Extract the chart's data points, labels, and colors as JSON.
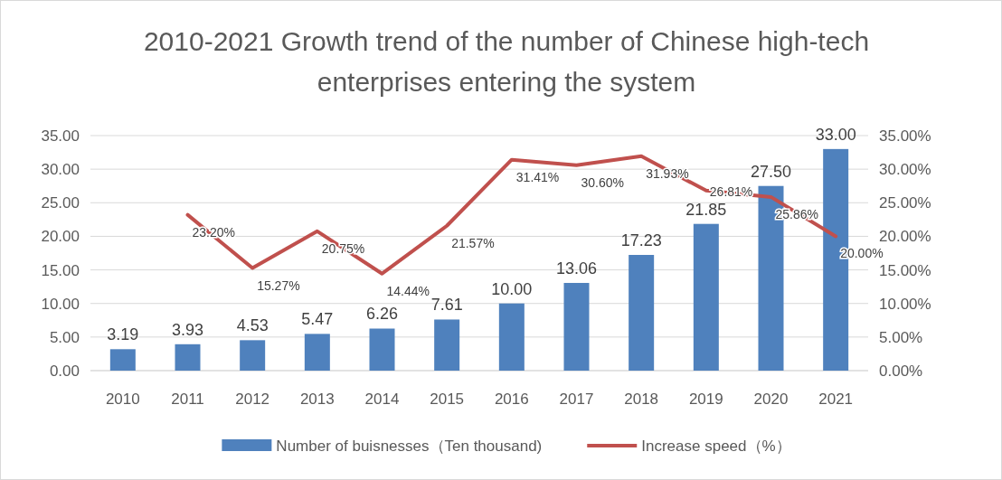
{
  "chart_data": {
    "type": "bar",
    "title": "2010-2021 Growth trend of the number of Chinese high-tech enterprises entering the system",
    "categories": [
      "2010",
      "2011",
      "2012",
      "2013",
      "2014",
      "2015",
      "2016",
      "2017",
      "2018",
      "2019",
      "2020",
      "2021"
    ],
    "series": [
      {
        "name": "Number of buisnesses（Ten thousand)",
        "color": "#4f81bd",
        "values": [
          3.19,
          3.93,
          4.53,
          5.47,
          6.26,
          7.61,
          10.0,
          13.06,
          17.23,
          21.85,
          27.5,
          33.0
        ],
        "value_labels": [
          "3.19",
          "3.93",
          "4.53",
          "5.47",
          "6.26",
          "7.61",
          "10.00",
          "13.06",
          "17.23",
          "21.85",
          "27.50",
          "33.00"
        ]
      },
      {
        "name": "Increase speed（%）",
        "type": "line",
        "axis": "y2",
        "color": "#c0504d",
        "values": [
          null,
          23.2,
          15.27,
          20.75,
          14.44,
          21.57,
          31.41,
          30.6,
          31.93,
          26.81,
          25.86,
          20.0
        ],
        "value_labels": [
          null,
          "23.20%",
          "15.27%",
          "20.75%",
          "14.44%",
          "21.57%",
          "31.41%",
          "30.60%",
          "31.93%",
          "26.81%",
          "25.86%",
          "20.00%"
        ]
      }
    ],
    "ylim": [
      0,
      35
    ],
    "yticks": [
      {
        "value": 0,
        "label": "0.00"
      },
      {
        "value": 5,
        "label": "5.00"
      },
      {
        "value": 10,
        "label": "10.00"
      },
      {
        "value": 15,
        "label": "15.00"
      },
      {
        "value": 20,
        "label": "20.00"
      },
      {
        "value": 25,
        "label": "25.00"
      },
      {
        "value": 30,
        "label": "30.00"
      },
      {
        "value": 35,
        "label": "35.00"
      }
    ],
    "y2lim": [
      0,
      35
    ],
    "y2ticks": [
      {
        "value": 0,
        "label": "0.00%"
      },
      {
        "value": 5,
        "label": "5.00%"
      },
      {
        "value": 10,
        "label": "10.00%"
      },
      {
        "value": 15,
        "label": "15.00%"
      },
      {
        "value": 20,
        "label": "20.00%"
      },
      {
        "value": 25,
        "label": "25.00%"
      },
      {
        "value": 30,
        "label": "30.00%"
      },
      {
        "value": 35,
        "label": "35.00%"
      }
    ],
    "grid": "y",
    "legend": "bottom",
    "marker": "none",
    "line_style": "solid"
  }
}
